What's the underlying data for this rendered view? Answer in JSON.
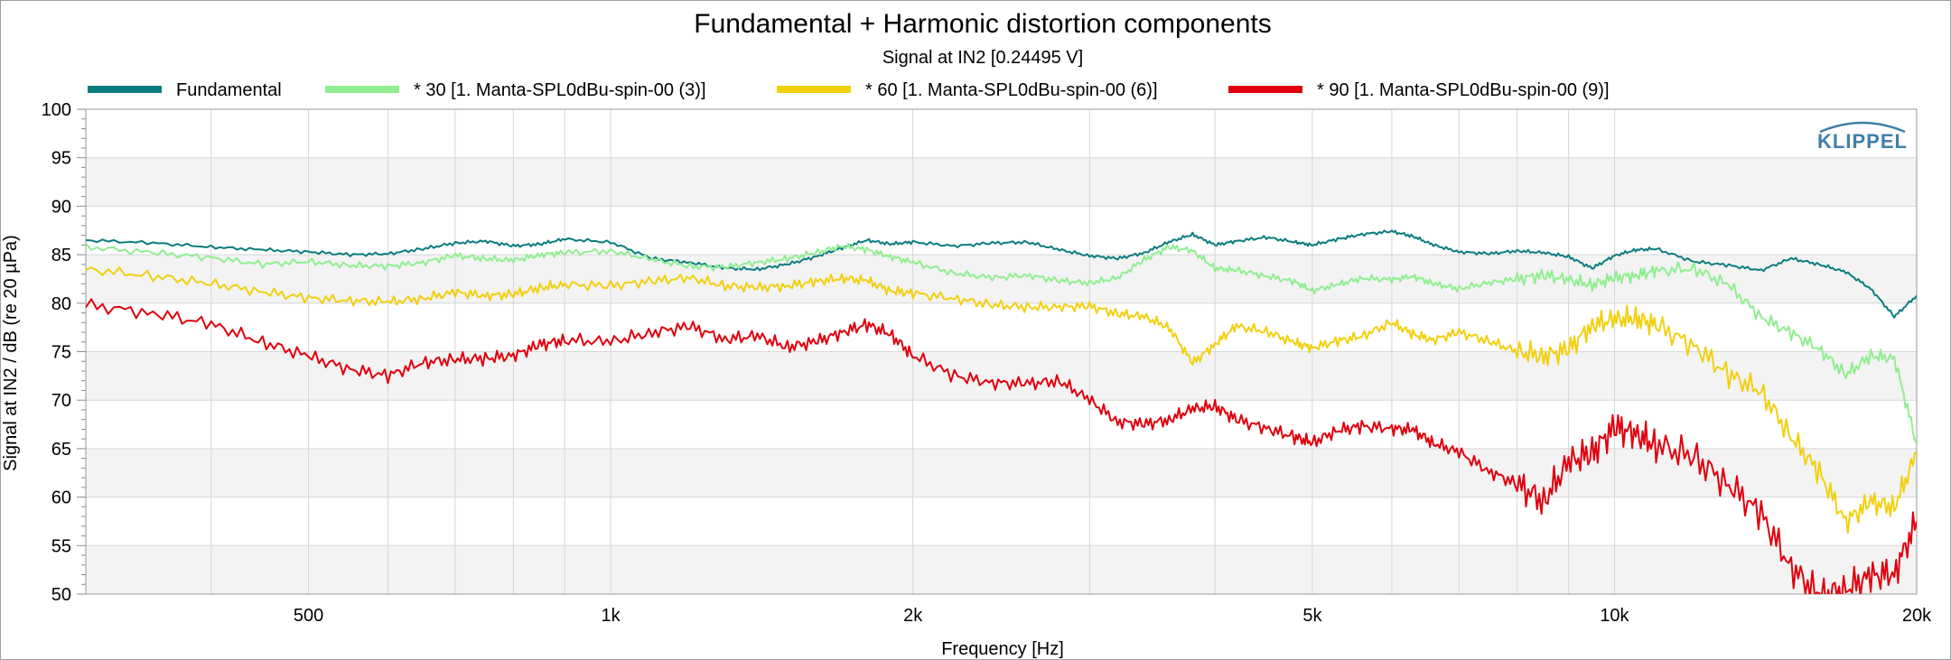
{
  "chart_data": {
    "type": "line",
    "title": "Fundamental + Harmonic distortion components",
    "subtitle": "Signal at IN2 [0.24495 V]",
    "xlabel": "Frequency [Hz]",
    "ylabel": "Signal at IN2 / dB (re 20 µPa)",
    "xscale": "log",
    "xlim": [
      300,
      20000
    ],
    "ylim": [
      50,
      100
    ],
    "yticks": [
      100,
      95,
      90,
      85,
      80,
      75,
      70,
      65,
      60,
      55,
      50
    ],
    "xticks": [
      {
        "value": 500,
        "label": "500"
      },
      {
        "value": 1000,
        "label": "1k"
      },
      {
        "value": 2000,
        "label": "2k"
      },
      {
        "value": 5000,
        "label": "5k"
      },
      {
        "value": 10000,
        "label": "10k"
      },
      {
        "value": 20000,
        "label": "20k"
      }
    ],
    "grid": true,
    "legend_position": "top",
    "logo": "KLIPPEL",
    "series": [
      {
        "name": "Fundamental",
        "color": "#0b7c80",
        "x": [
          300,
          350,
          400,
          450,
          500,
          550,
          600,
          650,
          700,
          750,
          800,
          850,
          900,
          1000,
          1100,
          1200,
          1300,
          1400,
          1500,
          1600,
          1700,
          1800,
          1900,
          2000,
          2200,
          2400,
          2600,
          2800,
          3000,
          3200,
          3400,
          3600,
          3800,
          4000,
          4200,
          4500,
          4800,
          5000,
          5300,
          5600,
          6000,
          6300,
          6600,
          7000,
          7500,
          8000,
          8500,
          9000,
          9500,
          10000,
          10500,
          11000,
          12000,
          13000,
          14000,
          15000,
          16000,
          17000,
          18000,
          19000,
          20000
        ],
        "y": [
          86.5,
          86.2,
          85.8,
          85.5,
          85.3,
          85.0,
          85.1,
          85.6,
          86.2,
          86.4,
          85.9,
          86.1,
          86.6,
          86.3,
          84.6,
          84.2,
          83.6,
          83.5,
          84.0,
          84.8,
          85.7,
          86.5,
          86.1,
          86.3,
          85.9,
          86.2,
          86.3,
          85.5,
          84.9,
          84.6,
          85.2,
          86.3,
          87.1,
          86.0,
          86.4,
          86.8,
          86.3,
          86.0,
          86.6,
          87.1,
          87.4,
          86.9,
          86.0,
          85.3,
          85.1,
          85.4,
          85.2,
          84.8,
          83.6,
          84.9,
          85.5,
          85.6,
          84.3,
          83.9,
          83.4,
          84.6,
          84.0,
          83.2,
          81.5,
          78.6,
          80.8
        ]
      },
      {
        "name": "* 30 [1. Manta-SPL0dBu-spin-00 (3)]",
        "color": "#90ee90",
        "x": [
          300,
          350,
          400,
          450,
          500,
          550,
          600,
          650,
          700,
          750,
          800,
          850,
          900,
          1000,
          1100,
          1200,
          1300,
          1400,
          1500,
          1600,
          1700,
          1800,
          1900,
          2000,
          2200,
          2400,
          2600,
          2800,
          3000,
          3200,
          3400,
          3600,
          3800,
          4000,
          4200,
          4500,
          4800,
          5000,
          5300,
          5600,
          6000,
          6300,
          6600,
          7000,
          7500,
          8000,
          8500,
          9000,
          9500,
          10000,
          10500,
          11000,
          12000,
          13000,
          14000,
          15000,
          16000,
          17000,
          18000,
          19000,
          20000
        ],
        "y": [
          85.8,
          85.2,
          84.7,
          84.0,
          84.3,
          83.9,
          83.8,
          84.2,
          84.9,
          84.6,
          84.4,
          85.0,
          85.2,
          85.4,
          84.5,
          83.8,
          83.7,
          84.2,
          84.6,
          85.2,
          85.9,
          85.5,
          84.8,
          84.2,
          83.1,
          82.6,
          82.9,
          82.3,
          82.1,
          82.6,
          84.5,
          85.8,
          85.4,
          83.6,
          83.4,
          82.8,
          82.2,
          81.3,
          81.9,
          82.6,
          82.4,
          82.8,
          82.0,
          81.5,
          82.1,
          82.5,
          82.9,
          82.4,
          81.9,
          82.6,
          82.9,
          83.3,
          83.6,
          81.8,
          78.6,
          76.9,
          75.3,
          72.6,
          74.6,
          74.3,
          65.5
        ]
      },
      {
        "name": "* 60 [1. Manta-SPL0dBu-spin-00 (6)]",
        "color": "#f2cf0f",
        "x": [
          300,
          350,
          400,
          450,
          500,
          550,
          600,
          650,
          700,
          750,
          800,
          850,
          900,
          1000,
          1100,
          1200,
          1300,
          1400,
          1500,
          1600,
          1700,
          1800,
          1900,
          2000,
          2200,
          2400,
          2600,
          2800,
          3000,
          3200,
          3400,
          3600,
          3800,
          4000,
          4200,
          4500,
          4800,
          5000,
          5300,
          5600,
          6000,
          6300,
          6600,
          7000,
          7500,
          8000,
          8500,
          9000,
          9500,
          10000,
          10500,
          11000,
          12000,
          13000,
          14000,
          15000,
          16000,
          17000,
          18000,
          19000,
          20000
        ],
        "y": [
          83.5,
          82.8,
          82.0,
          81.2,
          80.5,
          80.3,
          80.1,
          80.5,
          81.1,
          80.8,
          80.9,
          81.6,
          81.9,
          81.8,
          82.3,
          82.6,
          81.8,
          81.6,
          81.8,
          82.2,
          82.6,
          82.3,
          81.3,
          81.0,
          80.5,
          79.8,
          79.6,
          79.6,
          79.7,
          78.9,
          78.6,
          77.5,
          73.8,
          75.8,
          77.6,
          77.1,
          75.9,
          75.4,
          76.1,
          76.6,
          78.0,
          76.8,
          76.2,
          77.0,
          76.1,
          75.0,
          74.6,
          75.2,
          77.8,
          78.3,
          78.5,
          77.7,
          75.6,
          72.6,
          70.9,
          66.2,
          62.5,
          57.5,
          59.5,
          59.0,
          64.5
        ]
      },
      {
        "name": "* 90 [1. Manta-SPL0dBu-spin-00 (9)]",
        "color": "#e0000d",
        "x": [
          300,
          350,
          400,
          450,
          500,
          550,
          600,
          650,
          700,
          750,
          800,
          850,
          900,
          1000,
          1100,
          1200,
          1300,
          1400,
          1500,
          1600,
          1700,
          1800,
          1900,
          2000,
          2200,
          2400,
          2600,
          2800,
          3000,
          3200,
          3400,
          3600,
          3800,
          4000,
          4200,
          4500,
          4800,
          5000,
          5300,
          5600,
          6000,
          6300,
          6600,
          7000,
          7500,
          8000,
          8500,
          9000,
          9500,
          10000,
          10500,
          11000,
          12000,
          13000,
          14000,
          15000,
          16000,
          17000,
          18000,
          19000,
          20000
        ],
        "y": [
          79.8,
          79.0,
          77.8,
          76.0,
          74.5,
          73.2,
          72.5,
          73.9,
          74.2,
          74.3,
          74.6,
          75.7,
          76.2,
          76.0,
          77.0,
          77.6,
          76.3,
          76.6,
          75.5,
          76.0,
          77.0,
          77.8,
          76.8,
          74.6,
          72.5,
          71.8,
          71.7,
          72.0,
          70.0,
          67.8,
          67.5,
          68.0,
          69.1,
          69.4,
          68.0,
          67.1,
          66.2,
          65.6,
          66.9,
          67.3,
          67.1,
          66.9,
          65.6,
          64.6,
          62.7,
          61.3,
          59.6,
          63.6,
          64.6,
          67.2,
          66.5,
          65.4,
          64.1,
          61.3,
          58.2,
          52.8,
          49.8,
          50.6,
          51.8,
          52.2,
          57.5
        ]
      }
    ]
  }
}
